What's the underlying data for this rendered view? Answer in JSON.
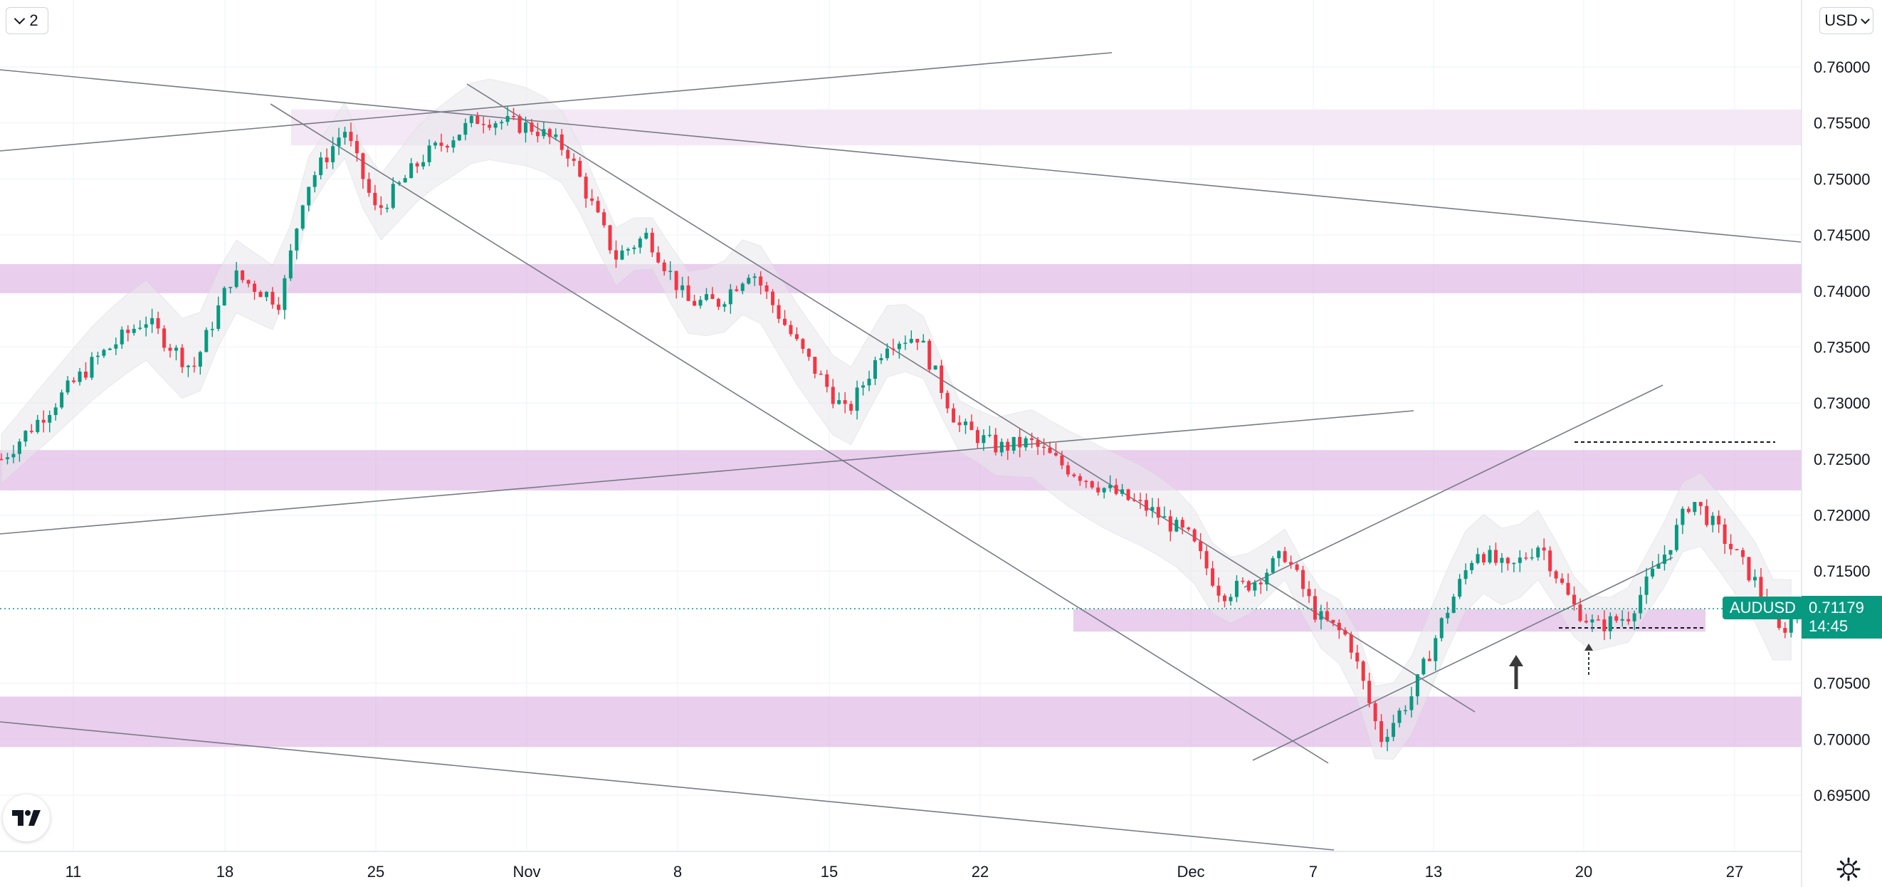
{
  "toolbar": {
    "layers_count": "2",
    "currency": "USD"
  },
  "price_tag": {
    "symbol": "AUDUSD",
    "price": "0.71179",
    "countdown": "14:45"
  },
  "icons": {
    "logo": "tradingview-logo-icon",
    "settings": "gear-icon",
    "dropdown": "chevron-down-icon"
  },
  "colors": {
    "up": "#089981",
    "down": "#f23645",
    "zone": "#e1bee7",
    "line": "#787b86"
  },
  "chart_data": {
    "type": "candlestick",
    "symbol": "AUDUSD",
    "title": "",
    "xlabel": "",
    "ylabel": "",
    "ylim": [
      0.6915,
      0.7652
    ],
    "y_ticks": [
      "0.76000",
      "0.75500",
      "0.75000",
      "0.74500",
      "0.74000",
      "0.73500",
      "0.73000",
      "0.72500",
      "0.72000",
      "0.71500",
      "0.70500",
      "0.70000",
      "0.69500"
    ],
    "x_ticks": [
      "11",
      "18",
      "25",
      "Nov",
      "8",
      "15",
      "22",
      "Dec",
      "7",
      "13",
      "20",
      "27"
    ],
    "last_price": 0.71179,
    "grid": true,
    "path_points": [
      {
        "t": 0.0,
        "y": 0.725
      },
      {
        "t": 0.06,
        "y": 0.734
      },
      {
        "t": 0.09,
        "y": 0.7375
      },
      {
        "t": 0.12,
        "y": 0.733
      },
      {
        "t": 0.145,
        "y": 0.7415
      },
      {
        "t": 0.175,
        "y": 0.739
      },
      {
        "t": 0.19,
        "y": 0.749
      },
      {
        "t": 0.215,
        "y": 0.7545
      },
      {
        "t": 0.235,
        "y": 0.747
      },
      {
        "t": 0.265,
        "y": 0.752
      },
      {
        "t": 0.3,
        "y": 0.7555
      },
      {
        "t": 0.335,
        "y": 0.7545
      },
      {
        "t": 0.355,
        "y": 0.7525
      },
      {
        "t": 0.385,
        "y": 0.743
      },
      {
        "t": 0.405,
        "y": 0.745
      },
      {
        "t": 0.43,
        "y": 0.739
      },
      {
        "t": 0.45,
        "y": 0.739
      },
      {
        "t": 0.47,
        "y": 0.742
      },
      {
        "t": 0.5,
        "y": 0.735
      },
      {
        "t": 0.53,
        "y": 0.729
      },
      {
        "t": 0.555,
        "y": 0.7355
      },
      {
        "t": 0.575,
        "y": 0.736
      },
      {
        "t": 0.6,
        "y": 0.728
      },
      {
        "t": 0.625,
        "y": 0.726
      },
      {
        "t": 0.645,
        "y": 0.7265
      },
      {
        "t": 0.665,
        "y": 0.7245
      },
      {
        "t": 0.69,
        "y": 0.7225
      },
      {
        "t": 0.72,
        "y": 0.7205
      },
      {
        "t": 0.745,
        "y": 0.718
      },
      {
        "t": 0.765,
        "y": 0.713
      },
      {
        "t": 0.785,
        "y": 0.714
      },
      {
        "t": 0.805,
        "y": 0.7165
      },
      {
        "t": 0.825,
        "y": 0.711
      },
      {
        "t": 0.845,
        "y": 0.709
      },
      {
        "t": 0.865,
        "y": 0.7
      },
      {
        "t": 0.885,
        "y": 0.704
      },
      {
        "t": 0.905,
        "y": 0.711
      },
      {
        "t": 0.925,
        "y": 0.717
      },
      {
        "t": 0.945,
        "y": 0.715
      },
      {
        "t": 0.965,
        "y": 0.7175
      },
      {
        "t": 0.985,
        "y": 0.712
      },
      {
        "t": 1.0,
        "y": 0.71
      },
      {
        "t": 1.02,
        "y": 0.711
      },
      {
        "t": 1.045,
        "y": 0.717
      },
      {
        "t": 1.06,
        "y": 0.7215
      },
      {
        "t": 1.08,
        "y": 0.718
      },
      {
        "t": 1.1,
        "y": 0.714
      },
      {
        "t": 1.115,
        "y": 0.7095
      },
      {
        "t": 1.13,
        "y": 0.7118
      }
    ],
    "zones": [
      {
        "y_from": 0.753,
        "y_to": 0.7562
      },
      {
        "y_from": 0.7398,
        "y_to": 0.7424
      },
      {
        "y_from": 0.7222,
        "y_to": 0.7258
      },
      {
        "y_from": 0.7096,
        "y_to": 0.7116
      },
      {
        "y_from": 0.6993,
        "y_to": 0.7038
      }
    ]
  }
}
